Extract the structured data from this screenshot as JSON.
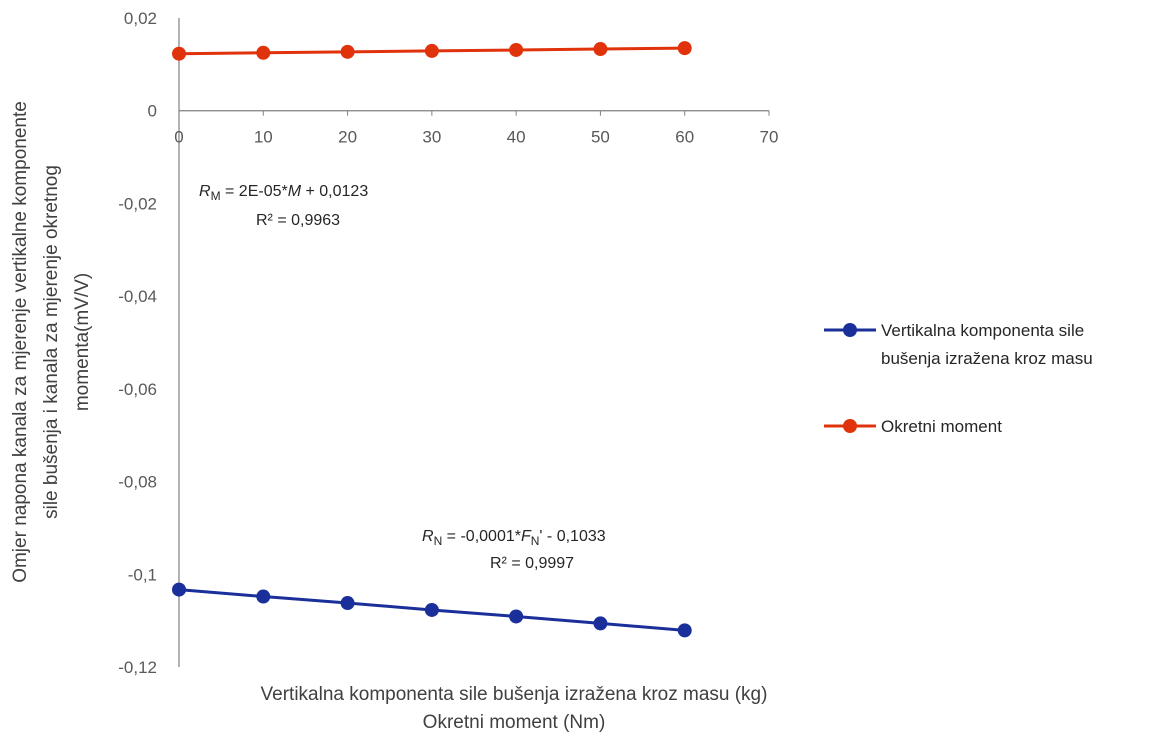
{
  "chart_data": {
    "type": "line",
    "x": [
      0,
      10,
      20,
      30,
      40,
      50,
      60
    ],
    "xlim": [
      0,
      70
    ],
    "ylim": [
      -0.12,
      0.02
    ],
    "x_ticks": [
      0,
      10,
      20,
      30,
      40,
      50,
      60,
      70
    ],
    "x_tick_labels": [
      "0",
      "10",
      "20",
      "30",
      "40",
      "50",
      "60",
      "70"
    ],
    "y_ticks": [
      0.02,
      0,
      -0.02,
      -0.04,
      -0.06,
      -0.08,
      -0.1,
      -0.12
    ],
    "y_tick_labels": [
      "0,02",
      "0",
      "-0,02",
      "-0,04",
      "-0,06",
      "-0,08",
      "-0,1",
      "-0,12"
    ],
    "xlabel_lines": [
      "Vertikalna komponenta sile bušenja izražena kroz masu (kg)",
      "Okretni moment (Nm)"
    ],
    "ylabel_lines": [
      "Omjer napona kanala za mjerenje vertikalne komponente",
      "sile bušenja i kanala za mjerenje okretnog",
      "momenta(mV/V)"
    ],
    "grid": false,
    "legend_position": "right",
    "series": [
      {
        "name_lines": [
          "Vertikalna komponenta sile",
          "bušenja izražena kroz masu"
        ],
        "color": "#1a2f9a",
        "values": [
          -0.1033,
          -0.1048,
          -0.1062,
          -0.1077,
          -0.1091,
          -0.1106,
          -0.1121
        ]
      },
      {
        "name_lines": [
          "Okretni moment"
        ],
        "color": "#e0330c",
        "values": [
          0.0123,
          0.0125,
          0.0127,
          0.0129,
          0.0131,
          0.0133,
          0.0135
        ]
      }
    ],
    "annotations": {
      "m": {
        "eq_var": "R",
        "eq_sub": "M",
        "eq_mid": " = 2E-05*",
        "eq_var2": "M",
        "eq_end": " + 0,0123",
        "r2": "R² = 0,9963"
      },
      "n": {
        "eq_var": "R",
        "eq_sub": "N",
        "eq_mid": " = -0,0001*",
        "eq_var2": "F",
        "eq_sub2": "N",
        "eq_end": "' - 0,1033",
        "r2": "R² = 0,9997"
      }
    }
  }
}
